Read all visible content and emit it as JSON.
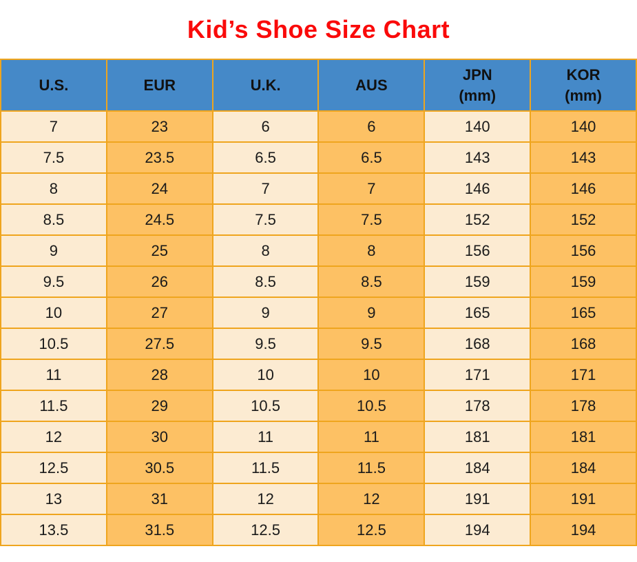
{
  "title": "Kid’s Shoe Size Chart",
  "colors": {
    "title_red": "#FA0A0A",
    "header_bg": "#4589C8",
    "cell_cream": "#FCEBD2",
    "cell_orange": "#FDC164",
    "border_gold": "#EFA51E",
    "text_dark": "#1A1A1A",
    "page_bg": "#FFFFFF"
  },
  "chart_data": {
    "type": "table",
    "title": "Kid’s Shoe Size Chart",
    "headers": [
      {
        "line1": "U.S.",
        "line2": ""
      },
      {
        "line1": "EUR",
        "line2": ""
      },
      {
        "line1": "U.K.",
        "line2": ""
      },
      {
        "line1": "AUS",
        "line2": ""
      },
      {
        "line1": "JPN",
        "line2": "(mm)"
      },
      {
        "line1": "KOR",
        "line2": "(mm)"
      }
    ],
    "rows": [
      [
        "7",
        "23",
        "6",
        "6",
        "140",
        "140"
      ],
      [
        "7.5",
        "23.5",
        "6.5",
        "6.5",
        "143",
        "143"
      ],
      [
        "8",
        "24",
        "7",
        "7",
        "146",
        "146"
      ],
      [
        "8.5",
        "24.5",
        "7.5",
        "7.5",
        "152",
        "152"
      ],
      [
        "9",
        "25",
        "8",
        "8",
        "156",
        "156"
      ],
      [
        "9.5",
        "26",
        "8.5",
        "8.5",
        "159",
        "159"
      ],
      [
        "10",
        "27",
        "9",
        "9",
        "165",
        "165"
      ],
      [
        "10.5",
        "27.5",
        "9.5",
        "9.5",
        "168",
        "168"
      ],
      [
        "11",
        "28",
        "10",
        "10",
        "171",
        "171"
      ],
      [
        "11.5",
        "29",
        "10.5",
        "10.5",
        "178",
        "178"
      ],
      [
        "12",
        "30",
        "11",
        "11",
        "181",
        "181"
      ],
      [
        "12.5",
        "30.5",
        "11.5",
        "11.5",
        "184",
        "184"
      ],
      [
        "13",
        "31",
        "12",
        "12",
        "191",
        "191"
      ],
      [
        "13.5",
        "31.5",
        "12.5",
        "12.5",
        "194",
        "194"
      ]
    ]
  }
}
